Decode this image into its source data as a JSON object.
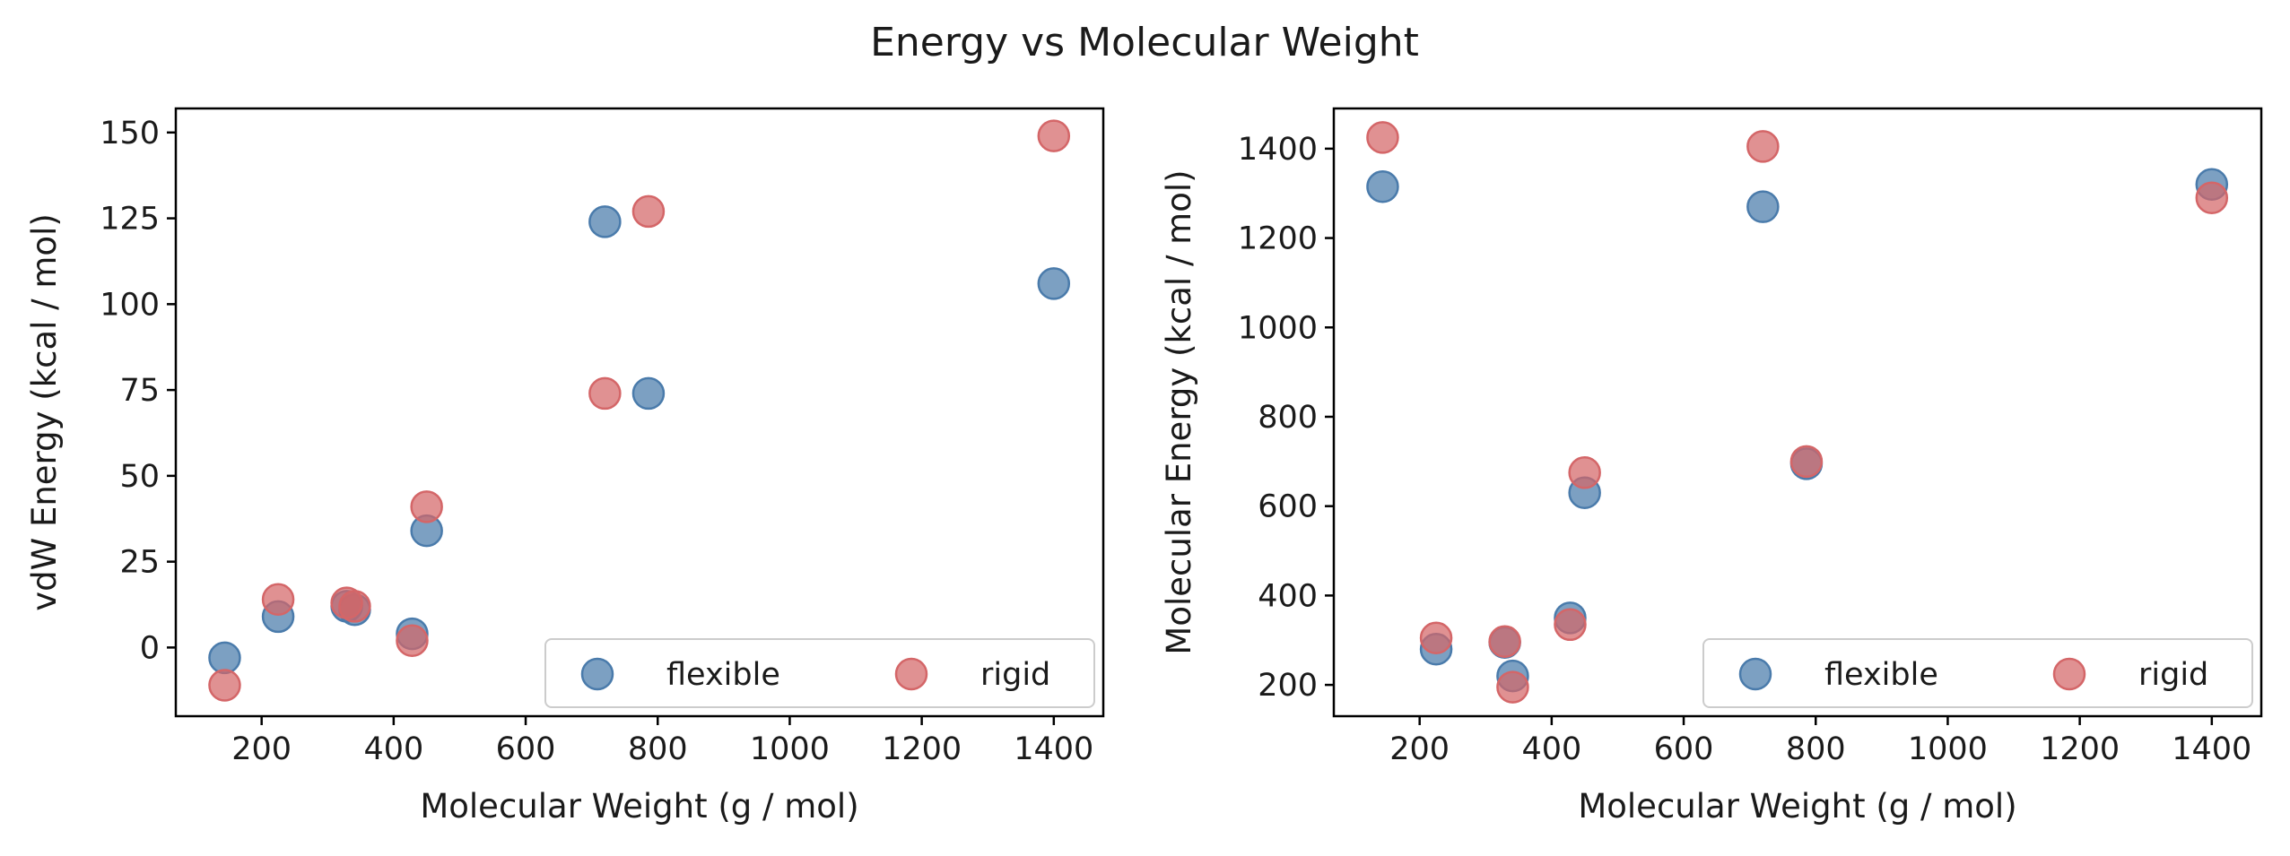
{
  "figure": {
    "title": "Energy vs Molecular Weight"
  },
  "colors": {
    "flexible": "#4a7bab",
    "rigid": "#d46668"
  },
  "chart_data": [
    {
      "type": "scatter",
      "xlabel": "Molecular Weight (g / mol)",
      "ylabel": "vdW Energy (kcal / mol)",
      "xlim": [
        70,
        1475
      ],
      "ylim": [
        -20,
        157
      ],
      "xticks": [
        200,
        400,
        600,
        800,
        1000,
        1200,
        1400
      ],
      "yticks": [
        0,
        25,
        50,
        75,
        100,
        125,
        150
      ],
      "legend": {
        "position": "lower-right",
        "entries": [
          "flexible",
          "rigid"
        ]
      },
      "series": [
        {
          "name": "flexible",
          "x": [
            144,
            225,
            329,
            341,
            428,
            450,
            720,
            786,
            1400
          ],
          "y": [
            -3,
            9,
            12,
            11,
            4,
            34,
            124,
            74,
            106
          ]
        },
        {
          "name": "rigid",
          "x": [
            144,
            225,
            329,
            341,
            428,
            450,
            720,
            786,
            1400
          ],
          "y": [
            -11,
            14,
            13,
            12,
            2,
            41,
            74,
            127,
            149
          ]
        }
      ]
    },
    {
      "type": "scatter",
      "xlabel": "Molecular Weight (g / mol)",
      "ylabel": "Molecular Energy (kcal / mol)",
      "xlim": [
        70,
        1475
      ],
      "ylim": [
        130,
        1490
      ],
      "xticks": [
        200,
        400,
        600,
        800,
        1000,
        1200,
        1400
      ],
      "yticks": [
        200,
        400,
        600,
        800,
        1000,
        1200,
        1400
      ],
      "legend": {
        "position": "lower-right",
        "entries": [
          "flexible",
          "rigid"
        ]
      },
      "series": [
        {
          "name": "flexible",
          "x": [
            144,
            225,
            329,
            341,
            428,
            450,
            720,
            786,
            1400
          ],
          "y": [
            1315,
            280,
            295,
            220,
            350,
            630,
            1270,
            695,
            1320
          ]
        },
        {
          "name": "rigid",
          "x": [
            144,
            225,
            329,
            341,
            428,
            450,
            720,
            786,
            1400
          ],
          "y": [
            1425,
            305,
            297,
            195,
            335,
            675,
            1405,
            700,
            1290
          ]
        }
      ]
    }
  ]
}
